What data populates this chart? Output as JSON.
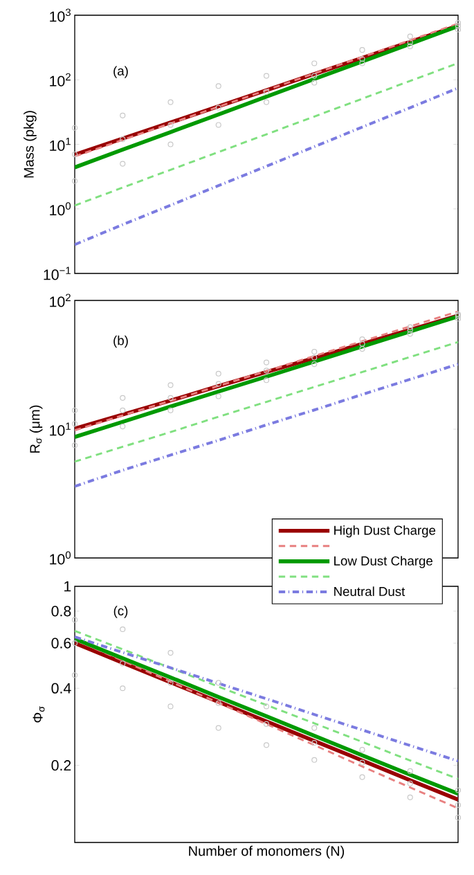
{
  "chart_data": [
    {
      "type": "line",
      "ylabel": "Mass (pkg)",
      "categories": [
        null,
        null,
        null,
        null,
        null,
        null,
        null,
        null,
        null
      ],
      "log": "y",
      "ylim": [
        0.1,
        1000
      ],
      "yticks": [
        {
          "value": 0.1,
          "label": "10$^{−1}$"
        },
        {
          "value": 1,
          "label": "10$^{0}$"
        },
        {
          "value": 10,
          "label": "10$^{1}$"
        },
        {
          "value": 100,
          "label": "10$^{2}$"
        },
        {
          "value": 1000,
          "label": "10$^{3}$"
        }
      ],
      "annotations": [
        "(a)"
      ],
      "series": [
        {
          "type": "scatter",
          "marker": "circle",
          "color": "#c8c8c8",
          "values": [
            18,
            28,
            45,
            80,
            115,
            180,
            290,
            470,
            760
          ]
        },
        {
          "type": "scatter",
          "marker": "circle",
          "color": "#c8c8c8",
          "values": [
            7,
            12,
            20,
            37,
            65,
            115,
            210,
            380,
            680
          ]
        },
        {
          "type": "scatter",
          "marker": "circle",
          "color": "#c8c8c8",
          "values": [
            2.7,
            5,
            10,
            20,
            45,
            90,
            180,
            330,
            600
          ]
        },
        {
          "line_style": "solid",
          "color": "#990000",
          "values": [
            6.9,
            12.3,
            21.8,
            38.8,
            69,
            123,
            218,
            388,
            690
          ]
        },
        {
          "line_style": "dashed",
          "color": "#e88080",
          "values": [
            6.5,
            11.7,
            21.1,
            38.3,
            69,
            125,
            226,
            410,
            740
          ]
        },
        {
          "line_style": "solid",
          "color": "#009900",
          "values": [
            4.4,
            8.3,
            15.5,
            29.1,
            54.7,
            103,
            192,
            361,
            676
          ]
        },
        {
          "line_style": "dashed",
          "color": "#80e080",
          "values": [
            1.13,
            2.14,
            4.03,
            7.6,
            14.3,
            27.0,
            50.9,
            96,
            181
          ]
        },
        {
          "line_style": "dashdot",
          "color": "#7b7be0",
          "values": [
            0.28,
            0.57,
            1.14,
            2.29,
            4.58,
            9.2,
            18.5,
            37.0,
            74.3
          ]
        }
      ]
    },
    {
      "type": "line",
      "ylabel": "R$_{σ}$ (μm)",
      "categories": [
        null,
        null,
        null,
        null,
        null,
        null,
        null,
        null,
        null
      ],
      "log": "y",
      "ylim": [
        1,
        100
      ],
      "yticks": [
        {
          "value": 1,
          "label": "10$^{0}$"
        },
        {
          "value": 10,
          "label": "10$^{1}$"
        },
        {
          "value": 100,
          "label": "10$^{2}$"
        }
      ],
      "annotations": [
        "(b)"
      ],
      "legend": "bottom right",
      "series": [
        {
          "type": "scatter",
          "marker": "circle",
          "color": "#c8c8c8",
          "values": [
            14,
            17.5,
            22,
            27,
            33,
            40,
            50,
            62,
            78
          ]
        },
        {
          "type": "scatter",
          "marker": "circle",
          "color": "#c8c8c8",
          "values": [
            11,
            14,
            17.5,
            22.5,
            28.5,
            36,
            46,
            59,
            76
          ]
        },
        {
          "type": "scatter",
          "marker": "circle",
          "color": "#c8c8c8",
          "values": [
            7.5,
            10.5,
            14,
            18,
            24,
            32,
            42,
            55,
            72
          ]
        },
        {
          "name": "High Dust Charge",
          "line_style": "solid",
          "color": "#990000",
          "values": [
            10.1,
            13.0,
            16.7,
            21.6,
            27.8,
            35.7,
            46.0,
            59.2,
            76.2
          ]
        },
        {
          "line_style": "dashed",
          "color": "#e88080",
          "values": [
            9.8,
            12.8,
            16.6,
            21.7,
            28.3,
            37.0,
            48.2,
            62.9,
            82.0
          ]
        },
        {
          "name": "Low Dust Charge",
          "line_style": "solid",
          "color": "#009900",
          "values": [
            8.7,
            11.4,
            15.0,
            19.6,
            25.6,
            33.5,
            43.9,
            57.4,
            75.2
          ]
        },
        {
          "line_style": "dashed",
          "color": "#80e080",
          "values": [
            5.6,
            7.3,
            9.5,
            12.5,
            16.3,
            21.3,
            27.8,
            36.4,
            47.5
          ]
        },
        {
          "name": "Neutral Dust",
          "line_style": "dashdot",
          "color": "#7b7be0",
          "values": [
            3.6,
            4.8,
            6.3,
            8.2,
            10.8,
            14.1,
            18.6,
            24.4,
            32.0
          ]
        }
      ]
    },
    {
      "type": "line",
      "ylabel": "Φ$_{σ}$",
      "xlabel": "Number of monomers (N)",
      "categories": [
        null,
        null,
        null,
        null,
        null,
        null,
        null,
        null,
        null
      ],
      "log": "y",
      "ylim": [
        0.1,
        1
      ],
      "yticks": [
        {
          "value": 0.1,
          "label": null
        },
        0.2,
        0.4,
        0.6,
        0.8,
        1
      ],
      "annotations": [
        "(c)"
      ],
      "series": [
        {
          "type": "scatter",
          "marker": "circle",
          "color": "#c8c8c8",
          "values": [
            0.74,
            0.68,
            0.55,
            0.42,
            0.34,
            0.28,
            0.23,
            0.19,
            0.16
          ]
        },
        {
          "type": "scatter",
          "marker": "circle",
          "color": "#c8c8c8",
          "values": [
            0.6,
            0.5,
            0.42,
            0.35,
            0.29,
            0.245,
            0.205,
            0.17,
            0.14
          ]
        },
        {
          "type": "scatter",
          "marker": "circle",
          "color": "#c8c8c8",
          "values": [
            0.45,
            0.4,
            0.34,
            0.28,
            0.24,
            0.21,
            0.18,
            0.15,
            0.125
          ]
        },
        {
          "line_style": "solid",
          "color": "#990000",
          "values": [
            0.6,
            0.503,
            0.422,
            0.354,
            0.297,
            0.249,
            0.209,
            0.175,
            0.147
          ]
        },
        {
          "line_style": "dashed",
          "color": "#e88080",
          "values": [
            0.619,
            0.513,
            0.424,
            0.351,
            0.29,
            0.24,
            0.198,
            0.164,
            0.136
          ]
        },
        {
          "line_style": "solid",
          "color": "#009900",
          "values": [
            0.624,
            0.524,
            0.441,
            0.37,
            0.311,
            0.261,
            0.219,
            0.184,
            0.155
          ]
        },
        {
          "line_style": "dashed",
          "color": "#80e080",
          "values": [
            0.67,
            0.568,
            0.48,
            0.406,
            0.344,
            0.292,
            0.247,
            0.209,
            0.177
          ]
        },
        {
          "line_style": "dashdot",
          "color": "#7b7be0",
          "values": [
            0.635,
            0.552,
            0.481,
            0.418,
            0.364,
            0.316,
            0.275,
            0.239,
            0.208
          ]
        }
      ]
    }
  ]
}
